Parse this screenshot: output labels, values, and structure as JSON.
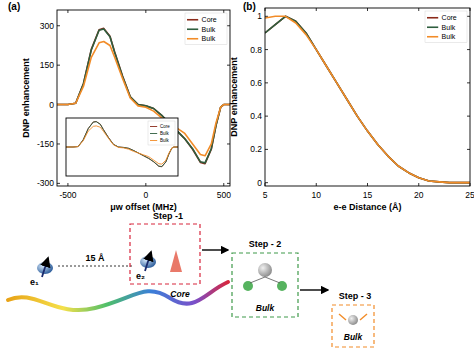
{
  "chart_data": [
    {
      "type": "line",
      "title": "(a)",
      "x_label": "μw offset (MHz)",
      "y_label": "DNP enhancement",
      "x": [
        -570,
        -500,
        -450,
        -400,
        -350,
        -300,
        -270,
        -230,
        -200,
        -150,
        -100,
        -50,
        0,
        50,
        100,
        150,
        200,
        250,
        300,
        350,
        380,
        420,
        450,
        480,
        500,
        540
      ],
      "series": [
        {
          "name": "Core",
          "color": "#8b2a1a",
          "values": [
            0,
            0,
            5,
            80,
            210,
            285,
            290,
            260,
            200,
            110,
            30,
            0,
            -5,
            -15,
            -40,
            -70,
            -100,
            -130,
            -170,
            -220,
            -225,
            -170,
            -80,
            -10,
            0,
            0
          ]
        },
        {
          "name": "Bulk",
          "color": "#2e5e3e",
          "values": [
            0,
            0,
            5,
            80,
            208,
            283,
            288,
            258,
            198,
            108,
            30,
            0,
            -5,
            -15,
            -40,
            -70,
            -100,
            -130,
            -168,
            -218,
            -222,
            -168,
            -80,
            -10,
            0,
            0
          ]
        },
        {
          "name": "Bulk",
          "color": "#f28c28",
          "values": [
            0,
            0,
            5,
            70,
            180,
            235,
            240,
            225,
            180,
            100,
            25,
            -5,
            -10,
            -25,
            -50,
            -70,
            -90,
            -110,
            -150,
            -190,
            -195,
            -150,
            -70,
            -10,
            0,
            0
          ]
        }
      ],
      "xlim": [
        -570,
        540
      ],
      "ylim": [
        -310,
        360
      ],
      "xticks": [
        -500,
        0,
        500
      ],
      "yticks": [
        -300,
        -150,
        0,
        150,
        300
      ],
      "legend": "upper right"
    },
    {
      "type": "line",
      "title": "(b)",
      "x_label": "e-e Distance (Å)",
      "y_label": "DNP enhancement",
      "x": [
        5,
        6,
        7,
        8,
        9,
        10,
        11,
        12,
        13,
        14,
        15,
        16,
        17,
        18,
        19,
        20,
        21,
        22,
        23,
        24,
        25
      ],
      "series": [
        {
          "name": "Core",
          "color": "#8b2a1a",
          "values": [
            0.9,
            0.95,
            1.0,
            0.97,
            0.9,
            0.8,
            0.7,
            0.6,
            0.5,
            0.4,
            0.31,
            0.23,
            0.16,
            0.1,
            0.06,
            0.03,
            0.01,
            0.005,
            0,
            0,
            0
          ]
        },
        {
          "name": "Bulk",
          "color": "#2e5e3e",
          "values": [
            0.9,
            0.95,
            1.0,
            0.97,
            0.9,
            0.8,
            0.7,
            0.6,
            0.5,
            0.4,
            0.31,
            0.23,
            0.16,
            0.1,
            0.06,
            0.03,
            0.01,
            0.005,
            0,
            0,
            0
          ]
        },
        {
          "name": "Bulk",
          "color": "#f28c28",
          "values": [
            0.99,
            1.0,
            1.0,
            0.96,
            0.89,
            0.8,
            0.7,
            0.6,
            0.5,
            0.4,
            0.31,
            0.23,
            0.16,
            0.1,
            0.06,
            0.03,
            0.01,
            0.005,
            0,
            0,
            0
          ]
        }
      ],
      "xlim": [
        5,
        25
      ],
      "ylim": [
        -0.02,
        1.05
      ],
      "xticks": [
        5,
        10,
        15,
        20,
        25
      ],
      "yticks": [
        0,
        0.2,
        0.4,
        0.6,
        0.8,
        1
      ],
      "legend": "upper right"
    },
    {
      "type": "line",
      "x": [
        -570,
        -500,
        -450,
        -400,
        -350,
        -300,
        -270,
        -230,
        -200,
        -150,
        -100,
        -50,
        0,
        50,
        100,
        150,
        200,
        250,
        300,
        350,
        380,
        420,
        450,
        480,
        500,
        540
      ],
      "series": [
        {
          "name": "Core",
          "color": "#8b2a1a",
          "values": [
            0,
            0,
            5,
            80,
            210,
            285,
            290,
            260,
            200,
            110,
            30,
            0,
            -5,
            -15,
            -40,
            -70,
            -100,
            -130,
            -170,
            -220,
            -225,
            -170,
            -80,
            -10,
            0,
            0
          ]
        },
        {
          "name": "Bulk",
          "color": "#2e5e3e",
          "values": [
            0,
            0,
            5,
            80,
            208,
            283,
            288,
            258,
            198,
            108,
            30,
            0,
            -5,
            -15,
            -40,
            -70,
            -100,
            -130,
            -168,
            -218,
            -222,
            -168,
            -80,
            -10,
            0,
            0
          ]
        },
        {
          "name": "Bulk",
          "color": "#f28c28",
          "values": [
            0,
            0,
            5,
            70,
            180,
            235,
            240,
            225,
            180,
            100,
            25,
            -5,
            -10,
            -25,
            -50,
            -70,
            -90,
            -110,
            -150,
            -190,
            -195,
            -150,
            -70,
            -10,
            0,
            0
          ]
        }
      ],
      "xlim": [
        -570,
        540
      ],
      "ylim": [
        -330,
        330
      ],
      "tick_labels": false,
      "legend": "upper right"
    }
  ],
  "diagram": {
    "molecule": {
      "spins": [
        {
          "label": "e₁"
        },
        {
          "label": "e₂"
        }
      ],
      "distance": "15 Å"
    },
    "steps": [
      {
        "label": "Step -1",
        "region": "Core"
      },
      {
        "label": "Step - 2",
        "region": "Bulk"
      },
      {
        "label": "Step - 3",
        "region": "Bulk"
      }
    ]
  }
}
